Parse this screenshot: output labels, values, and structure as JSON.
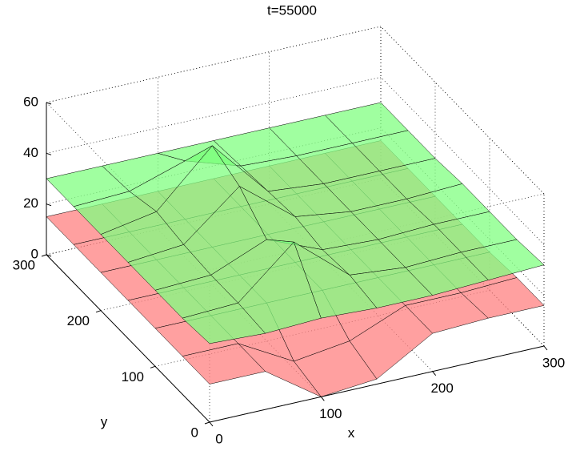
{
  "chart_data": {
    "type": "surface3d",
    "title": "t=55000",
    "x_label": "x",
    "y_label": "y",
    "xlim": [
      0,
      300
    ],
    "ylim": [
      0,
      300
    ],
    "zlim": [
      0,
      60
    ],
    "xticks": [
      0,
      100,
      200,
      300
    ],
    "yticks": [
      0,
      100,
      200,
      300
    ],
    "zticks": [
      0,
      20,
      40,
      60
    ],
    "grid": true,
    "x": [
      0,
      50,
      100,
      150,
      200,
      250,
      300
    ],
    "y": [
      0,
      50,
      100,
      150,
      200,
      250,
      300
    ],
    "series": [
      {
        "color": "#ff8080",
        "z": [
          [
            15,
            15,
            0,
            2,
            15,
            16,
            16
          ],
          [
            15,
            15,
            3,
            6,
            15,
            15,
            16
          ],
          [
            15,
            15,
            15,
            15,
            15,
            15,
            15
          ],
          [
            15,
            15,
            15,
            15,
            15,
            15,
            15
          ],
          [
            15,
            15,
            15,
            15,
            15,
            15,
            15
          ],
          [
            15,
            15,
            15,
            15,
            15,
            15,
            15
          ],
          [
            15,
            15,
            15,
            15,
            15,
            15,
            15
          ]
        ]
      },
      {
        "color": "#80ff80",
        "z": [
          [
            31,
            30,
            31,
            30,
            30,
            31,
            32
          ],
          [
            30,
            31,
            50,
            32,
            30,
            31,
            31
          ],
          [
            30,
            31,
            40,
            31,
            30,
            31,
            31
          ],
          [
            30,
            32,
            50,
            33,
            30,
            30,
            31
          ],
          [
            30,
            34,
            55,
            32,
            30,
            30,
            30
          ],
          [
            30,
            31,
            38,
            31,
            30,
            30,
            30
          ],
          [
            30,
            30,
            30,
            30,
            30,
            30,
            30
          ]
        ]
      }
    ]
  }
}
